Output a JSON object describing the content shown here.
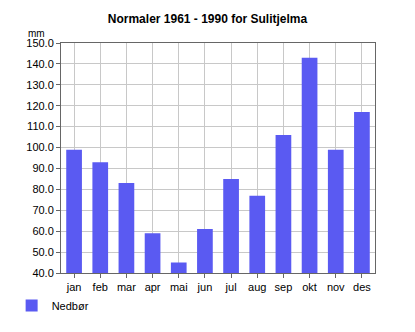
{
  "chart_data": {
    "type": "bar",
    "title": "Normaler 1961 - 1990 for Sulitjelma",
    "ylabel": "mm",
    "categories": [
      "jan",
      "feb",
      "mar",
      "apr",
      "mai",
      "jun",
      "jul",
      "aug",
      "sep",
      "okt",
      "nov",
      "des"
    ],
    "series": [
      {
        "name": "Nedbør",
        "color": "#5a5af2",
        "values": [
          99,
          93,
          83,
          59,
          45,
          61,
          85,
          77,
          106,
          143,
          99,
          117
        ]
      }
    ],
    "ylim": [
      40,
      150
    ],
    "yticks": [
      {
        "value": 40,
        "label": "40.0"
      },
      {
        "value": 50,
        "label": "50.0"
      },
      {
        "value": 60,
        "label": "60.0"
      },
      {
        "value": 70,
        "label": "70.0"
      },
      {
        "value": 80,
        "label": "80.0"
      },
      {
        "value": 90,
        "label": "90.0"
      },
      {
        "value": 100,
        "label": "100.0"
      },
      {
        "value": 110,
        "label": "110.0"
      },
      {
        "value": 120,
        "label": "120.0"
      },
      {
        "value": 130,
        "label": "130.0"
      },
      {
        "value": 140,
        "label": "140.0"
      },
      {
        "value": 150,
        "label": "150.0"
      }
    ],
    "grid": true,
    "legend": "bottom left"
  }
}
